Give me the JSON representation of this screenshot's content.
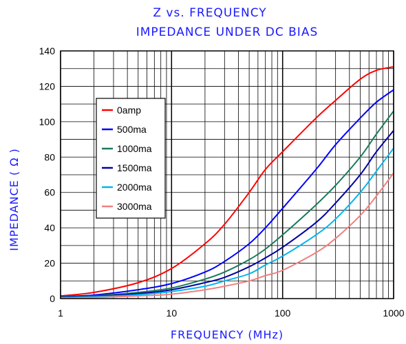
{
  "chart_data": {
    "type": "line",
    "title": "Z vs. FREQUENCY",
    "subtitle": "IMPEDANCE UNDER DC BIAS",
    "xlabel": "FREQUENCY (MHz)",
    "ylabel": "IMPEDANCE ( Ω )",
    "xscale": "log",
    "xlim": [
      1,
      1000
    ],
    "ylim": [
      0,
      140
    ],
    "x_ticks": [
      "1",
      "10",
      "100",
      "1000"
    ],
    "y_ticks": [
      "0",
      "20",
      "40",
      "60",
      "80",
      "100",
      "120",
      "140"
    ],
    "grid": true,
    "legend_position": "upper-left",
    "x": [
      1,
      2,
      5,
      10,
      20,
      30,
      50,
      70,
      100,
      200,
      300,
      500,
      700,
      1000
    ],
    "series": [
      {
        "name": "0amp",
        "color": "#ff0000",
        "values": [
          1.5,
          3.5,
          9,
          17,
          31,
          42,
          60,
          73,
          83,
          102,
          112,
          124,
          129,
          131
        ]
      },
      {
        "name": "500ma",
        "color": "#0000ff",
        "values": [
          1,
          2,
          5,
          8.5,
          15,
          21,
          31,
          40,
          51,
          73,
          87,
          102,
          111,
          118
        ]
      },
      {
        "name": "1000ma",
        "color": "#1a7a5a",
        "values": [
          0.8,
          1.5,
          3.5,
          6,
          11,
          15,
          22,
          28,
          36,
          53,
          64,
          80,
          93,
          106
        ]
      },
      {
        "name": "1500ma",
        "color": "#0000a0",
        "values": [
          0.6,
          1.2,
          2.8,
          5,
          9,
          12,
          18,
          23,
          29,
          43,
          54,
          70,
          83,
          95
        ]
      },
      {
        "name": "2000ma",
        "color": "#00b4f0",
        "values": [
          0.5,
          1,
          2.2,
          4,
          7,
          10,
          14,
          19,
          24,
          36,
          45,
          60,
          72,
          85
        ]
      },
      {
        "name": "3000ma",
        "color": "#f08080",
        "values": [
          0.3,
          0.6,
          1.5,
          2.5,
          5,
          7,
          10,
          13,
          16,
          26,
          34,
          47,
          58,
          71
        ]
      }
    ]
  }
}
